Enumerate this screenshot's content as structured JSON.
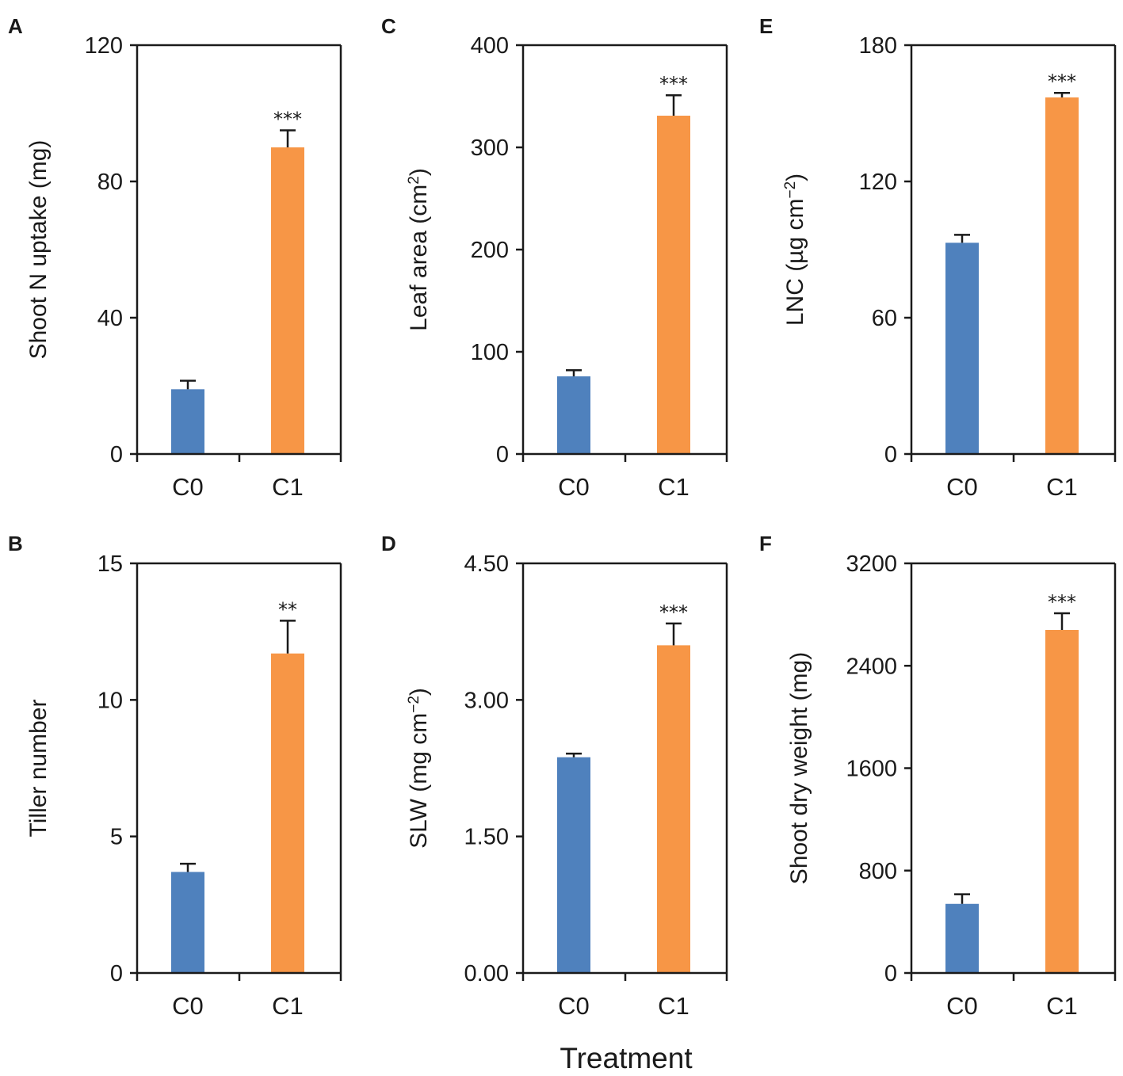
{
  "figure": {
    "xlabel": "Treatment",
    "colors": {
      "C0": "#4f81bd",
      "C1": "#f79646",
      "axis": "#1a1a1a"
    }
  },
  "chart_data": [
    {
      "panel": "A",
      "type": "bar",
      "categories": [
        "C0",
        "C1"
      ],
      "values": [
        19,
        90
      ],
      "errors": [
        2.5,
        5
      ],
      "significance": [
        "",
        "***"
      ],
      "ylabel": "Shoot N uptake (mg)",
      "ylabel_parts": [
        "Shoot N uptake (mg)"
      ],
      "ylim": [
        0,
        120
      ],
      "yticks": [
        0,
        40,
        80,
        120
      ],
      "ytick_labels": [
        "0",
        "40",
        "80",
        "120"
      ]
    },
    {
      "panel": "B",
      "type": "bar",
      "categories": [
        "C0",
        "C1"
      ],
      "values": [
        3.7,
        11.7
      ],
      "errors": [
        0.3,
        1.2
      ],
      "significance": [
        "",
        "**"
      ],
      "ylabel": "Tiller number",
      "ylabel_parts": [
        "Tiller number"
      ],
      "ylim": [
        0,
        15
      ],
      "yticks": [
        0,
        5,
        10,
        15
      ],
      "ytick_labels": [
        "0",
        "5",
        "10",
        "15"
      ]
    },
    {
      "panel": "C",
      "type": "bar",
      "categories": [
        "C0",
        "C1"
      ],
      "values": [
        76,
        331
      ],
      "errors": [
        6,
        20
      ],
      "significance": [
        "",
        "***"
      ],
      "ylabel": "Leaf area (cm2)",
      "ylabel_parts": [
        "Leaf area (cm",
        "2",
        ")"
      ],
      "ylim": [
        0,
        400
      ],
      "yticks": [
        0,
        100,
        200,
        300,
        400
      ],
      "ytick_labels": [
        "0",
        "100",
        "200",
        "300",
        "400"
      ]
    },
    {
      "panel": "D",
      "type": "bar",
      "categories": [
        "C0",
        "C1"
      ],
      "values": [
        2.37,
        3.6
      ],
      "errors": [
        0.04,
        0.24
      ],
      "significance": [
        "",
        "***"
      ],
      "ylabel": "SLW (mg cm−2)",
      "ylabel_parts": [
        "SLW (mg cm",
        "−2",
        ")"
      ],
      "ylim": [
        0,
        4.5
      ],
      "yticks": [
        0,
        1.5,
        3,
        4.5
      ],
      "ytick_labels": [
        "0.00",
        "1.50",
        "3.00",
        "4.50"
      ]
    },
    {
      "panel": "E",
      "type": "bar",
      "categories": [
        "C0",
        "C1"
      ],
      "values": [
        93,
        157
      ],
      "errors": [
        3.5,
        2
      ],
      "significance": [
        "",
        "***"
      ],
      "ylabel": "LNC (µg cm−2)",
      "ylabel_parts": [
        "LNC (µg cm",
        "−2",
        ")"
      ],
      "ylim": [
        0,
        180
      ],
      "yticks": [
        0,
        60,
        120,
        180
      ],
      "ytick_labels": [
        "0",
        "60",
        "120",
        "180"
      ]
    },
    {
      "panel": "F",
      "type": "bar",
      "categories": [
        "C0",
        "C1"
      ],
      "values": [
        540,
        2680
      ],
      "errors": [
        75,
        130
      ],
      "significance": [
        "",
        "***"
      ],
      "ylabel": "Shoot dry weight (mg)",
      "ylabel_parts": [
        "Shoot dry weight (mg)"
      ],
      "ylim": [
        0,
        3200
      ],
      "yticks": [
        0,
        800,
        1600,
        2400,
        3200
      ],
      "ytick_labels": [
        "0",
        "800",
        "1600",
        "2400",
        "3200"
      ]
    }
  ]
}
